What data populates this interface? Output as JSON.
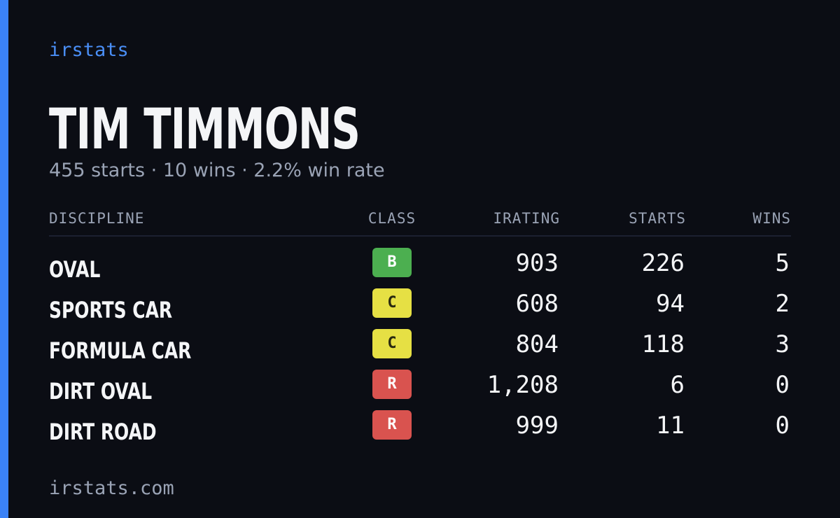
{
  "brand": "irstats",
  "player": {
    "name": "TIM TIMMONS",
    "summary": "455 starts · 10 wins · 2.2% win rate"
  },
  "table": {
    "headers": [
      "DISCIPLINE",
      "CLASS",
      "IRATING",
      "STARTS",
      "WINS"
    ],
    "rows": [
      [
        "OVAL",
        "B",
        "903",
        "226",
        "5"
      ],
      [
        "SPORTS CAR",
        "C",
        "608",
        "94",
        "2"
      ],
      [
        "FORMULA CAR",
        "C",
        "804",
        "118",
        "3"
      ],
      [
        "DIRT OVAL",
        "R",
        "1,208",
        "6",
        "0"
      ],
      [
        "DIRT ROAD",
        "R",
        "999",
        "11",
        "0"
      ]
    ],
    "badge_colors": [
      "#4caf50",
      "#e6e044",
      "#e6e044",
      "#d9534f",
      "#d9534f"
    ]
  },
  "footer": "irstats.com"
}
